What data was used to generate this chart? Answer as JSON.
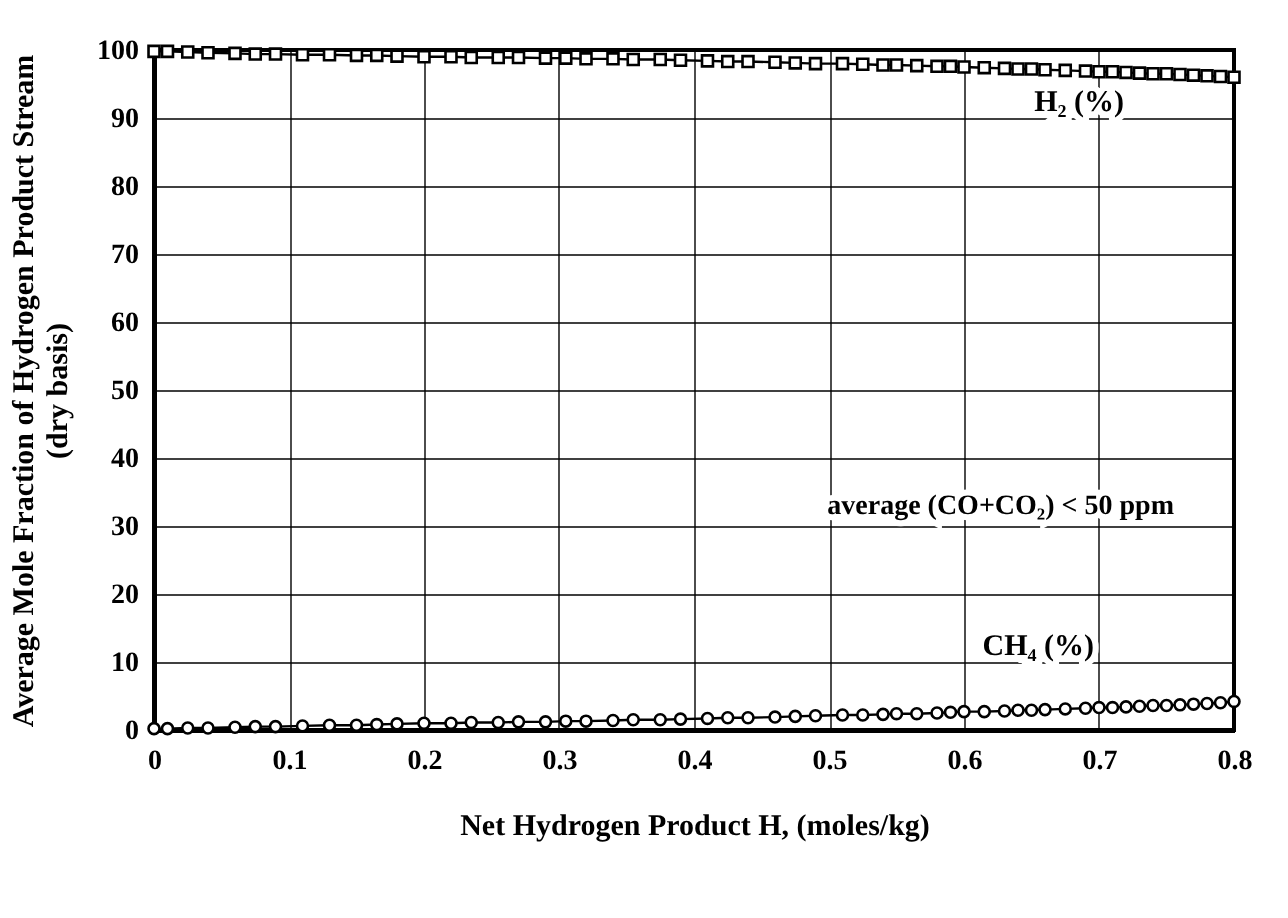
{
  "chart_data": {
    "type": "line",
    "xlabel": "Net Hydrogen Product H, (moles/kg)",
    "ylabel": "Average Mole Fraction of Hydrogen Product Stream\n(dry basis)",
    "x": [
      0,
      0.01,
      0.025,
      0.04,
      0.06,
      0.075,
      0.09,
      0.11,
      0.13,
      0.15,
      0.165,
      0.18,
      0.2,
      0.22,
      0.235,
      0.255,
      0.27,
      0.29,
      0.305,
      0.32,
      0.34,
      0.355,
      0.375,
      0.39,
      0.41,
      0.425,
      0.44,
      0.46,
      0.475,
      0.49,
      0.51,
      0.525,
      0.54,
      0.55,
      0.565,
      0.58,
      0.59,
      0.6,
      0.615,
      0.63,
      0.64,
      0.65,
      0.66,
      0.675,
      0.69,
      0.7,
      0.71,
      0.72,
      0.73,
      0.74,
      0.75,
      0.76,
      0.77,
      0.78,
      0.79,
      0.8
    ],
    "series": [
      {
        "name": "H₂ (%)",
        "color": "#000000",
        "marker": "square",
        "values": [
          99.8,
          99.8,
          99.7,
          99.6,
          99.5,
          99.4,
          99.4,
          99.3,
          99.3,
          99.2,
          99.2,
          99.1,
          99.0,
          99.0,
          98.9,
          98.9,
          98.9,
          98.8,
          98.8,
          98.7,
          98.7,
          98.6,
          98.6,
          98.5,
          98.4,
          98.3,
          98.3,
          98.2,
          98.1,
          98.0,
          98.0,
          97.9,
          97.8,
          97.8,
          97.7,
          97.6,
          97.6,
          97.5,
          97.4,
          97.3,
          97.2,
          97.2,
          97.1,
          97.0,
          96.9,
          96.8,
          96.8,
          96.7,
          96.6,
          96.5,
          96.5,
          96.4,
          96.3,
          96.2,
          96.1,
          96.0
        ]
      },
      {
        "name": "CH₄ (%)",
        "color": "#000000",
        "marker": "circle",
        "values": [
          0.2,
          0.2,
          0.3,
          0.3,
          0.4,
          0.5,
          0.5,
          0.6,
          0.7,
          0.7,
          0.8,
          0.9,
          1.0,
          1.0,
          1.1,
          1.1,
          1.2,
          1.2,
          1.3,
          1.3,
          1.4,
          1.5,
          1.5,
          1.6,
          1.7,
          1.8,
          1.8,
          1.9,
          2.0,
          2.1,
          2.2,
          2.2,
          2.3,
          2.4,
          2.4,
          2.5,
          2.6,
          2.7,
          2.7,
          2.8,
          2.9,
          2.9,
          3.0,
          3.1,
          3.2,
          3.3,
          3.3,
          3.4,
          3.5,
          3.6,
          3.6,
          3.7,
          3.8,
          3.9,
          4.0,
          4.2
        ]
      }
    ],
    "annotations": [
      "average (CO+CO₂) < 50 ppm"
    ],
    "xlim": [
      0,
      0.8
    ],
    "xticks": [
      0,
      0.1,
      0.2,
      0.3,
      0.4,
      0.5,
      0.6,
      0.7,
      0.8
    ],
    "ylim": [
      0,
      100
    ],
    "yticks": [
      0,
      10,
      20,
      30,
      40,
      50,
      60,
      70,
      80,
      90,
      100
    ],
    "grid": true
  }
}
